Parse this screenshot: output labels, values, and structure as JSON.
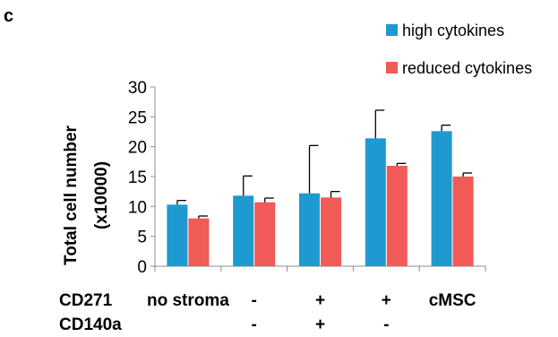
{
  "panel_label": "c",
  "chart_data": {
    "type": "bar",
    "title": "",
    "xlabel": "",
    "ylabel_lines": [
      "Total cell number",
      "(x10000)"
    ],
    "ylim": [
      0,
      30
    ],
    "yticks": [
      0,
      5,
      10,
      15,
      20,
      25,
      30
    ],
    "grid": false,
    "legend_position": "top-right",
    "categories": [
      "no stroma",
      "CD271-CD140a-",
      "CD271+CD140a+",
      "CD271+CD140a-",
      "cMSC"
    ],
    "condition_rows": [
      {
        "label": "CD271",
        "values": [
          "no stroma",
          "-",
          "+",
          "+",
          "cMSC"
        ]
      },
      {
        "label": "CD140a",
        "values": [
          "",
          "-",
          "+",
          "-",
          ""
        ]
      }
    ],
    "series": [
      {
        "name": "high cytokines",
        "color": "#1e9ad0",
        "values": [
          10.3,
          11.8,
          12.2,
          21.4,
          22.6
        ],
        "errors": [
          0.7,
          3.3,
          8.0,
          4.7,
          1.0
        ]
      },
      {
        "name": "reduced cytokines",
        "color": "#f05a57",
        "values": [
          8.0,
          10.7,
          11.5,
          16.8,
          15.0
        ],
        "errors": [
          0.4,
          0.7,
          1.0,
          0.4,
          0.6
        ]
      }
    ]
  }
}
